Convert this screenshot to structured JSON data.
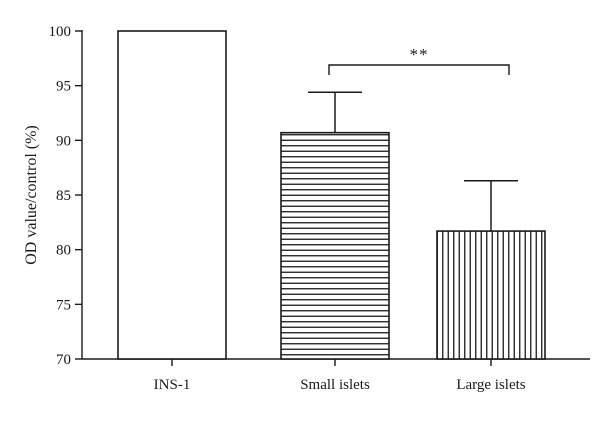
{
  "chart_data": {
    "type": "bar",
    "title": "",
    "xlabel": "",
    "ylabel": "OD value/control (%)",
    "categories": [
      "INS-1",
      "Small islets",
      "Large islets"
    ],
    "values": [
      100,
      90.7,
      81.7
    ],
    "error_upper": [
      null,
      94.4,
      86.3
    ],
    "patterns": [
      "solid-white",
      "horizontal-lines",
      "vertical-lines"
    ],
    "ylim": [
      70,
      100
    ],
    "yticks": [
      70,
      75,
      80,
      85,
      90,
      95,
      100
    ],
    "ytick_labels": [
      "70",
      "75",
      "80",
      "85",
      "90",
      "95",
      "100"
    ],
    "grid": false,
    "legend": "none",
    "significance": {
      "from": "Small islets",
      "to": "Large islets",
      "label": "**"
    },
    "colors": {
      "bar_fill": "#ffffff",
      "bar_stroke": "#1a1a1a",
      "axis": "#1a1a1a"
    }
  }
}
